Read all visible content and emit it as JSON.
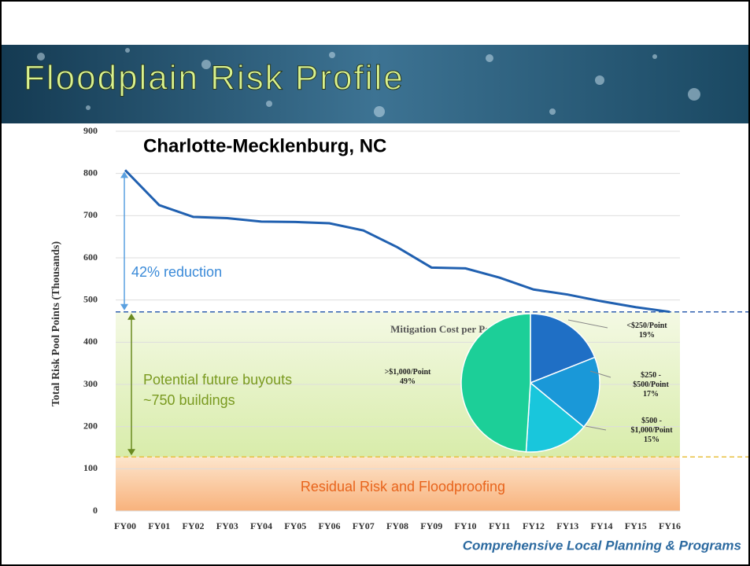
{
  "slide": {
    "title": "Floodplain Risk Profile",
    "footer": "Comprehensive Local Planning & Programs"
  },
  "chart_data": {
    "type": "line",
    "title": "Charlotte-Mecklenburg, NC",
    "y_label": "Total Risk Pool Points (Thousands)",
    "categories": [
      "FY00",
      "FY01",
      "FY02",
      "FY03",
      "FY04",
      "FY05",
      "FY06",
      "FY07",
      "FY08",
      "FY09",
      "FY10",
      "FY11",
      "FY12",
      "FY13",
      "FY14",
      "FY15",
      "FY16"
    ],
    "series": [
      {
        "name": "Total Risk Pool Points",
        "color": "#2060b0",
        "values": [
          808,
          725,
          697,
          694,
          686,
          685,
          682,
          665,
          625,
          577,
          575,
          553,
          525,
          513,
          497,
          483,
          472
        ]
      }
    ],
    "ylim": [
      0,
      900
    ],
    "yticks": [
      0,
      100,
      200,
      300,
      400,
      500,
      600,
      700,
      800,
      900
    ],
    "grid": true,
    "bands": [
      {
        "from": 128,
        "to": 472,
        "text": [
          "Potential future buyouts",
          "~750 buildings"
        ],
        "color": "#e6f2c0"
      },
      {
        "from": 0,
        "to": 128,
        "text": [
          "Residual Risk and Floodproofing"
        ],
        "color": "#fbc89c"
      }
    ],
    "annotations": [
      {
        "text": "42% reduction",
        "from": 808,
        "to": 472
      }
    ],
    "inset": {
      "type": "pie",
      "title": "Mitigation Cost per Point",
      "categories": [
        "<$250/Point",
        "$250 - $500/Point",
        "$500 - $1,000/Point",
        ">$1,000/Point"
      ],
      "values": [
        19,
        17,
        15,
        49
      ],
      "value_labels": [
        "19%",
        "17%",
        "15%",
        "49%"
      ],
      "colors": [
        "#1f6fc5",
        "#1a98d8",
        "#19c6dc",
        "#1ccf98"
      ]
    }
  }
}
